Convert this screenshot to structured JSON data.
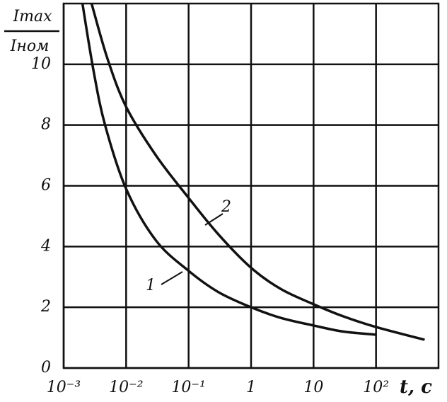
{
  "chart_data": {
    "type": "line",
    "ylabel": {
      "numerator": "Imax",
      "denominator": "Iном"
    },
    "xlabel": "t, c",
    "xscale": "log",
    "xlim": [
      0.001,
      1000
    ],
    "xticks": [
      {
        "value": 0.001,
        "label": "10⁻³"
      },
      {
        "value": 0.01,
        "label": "10⁻²"
      },
      {
        "value": 0.1,
        "label": "10⁻¹"
      },
      1,
      10,
      {
        "value": 100,
        "label": "10²"
      }
    ],
    "ylim": [
      0,
      12
    ],
    "yticks": [
      0,
      2,
      4,
      6,
      8,
      10
    ],
    "grid": true,
    "series": [
      {
        "name": "1",
        "color": "#111111",
        "x": [
          0.002,
          0.003,
          0.0046,
          0.01,
          0.03,
          0.1,
          0.3,
          1,
          3,
          10,
          30,
          100
        ],
        "values": [
          12,
          9.8,
          8,
          5.9,
          4.2,
          3.2,
          2.5,
          2.0,
          1.65,
          1.4,
          1.2,
          1.1
        ]
      },
      {
        "name": "2",
        "color": "#111111",
        "x": [
          0.0028,
          0.005,
          0.01,
          0.03,
          0.1,
          0.3,
          1,
          3,
          10,
          30,
          100,
          600
        ],
        "values": [
          12,
          10.2,
          8.6,
          7,
          5.6,
          4.4,
          3.3,
          2.6,
          2.1,
          1.7,
          1.35,
          0.93
        ]
      }
    ]
  }
}
